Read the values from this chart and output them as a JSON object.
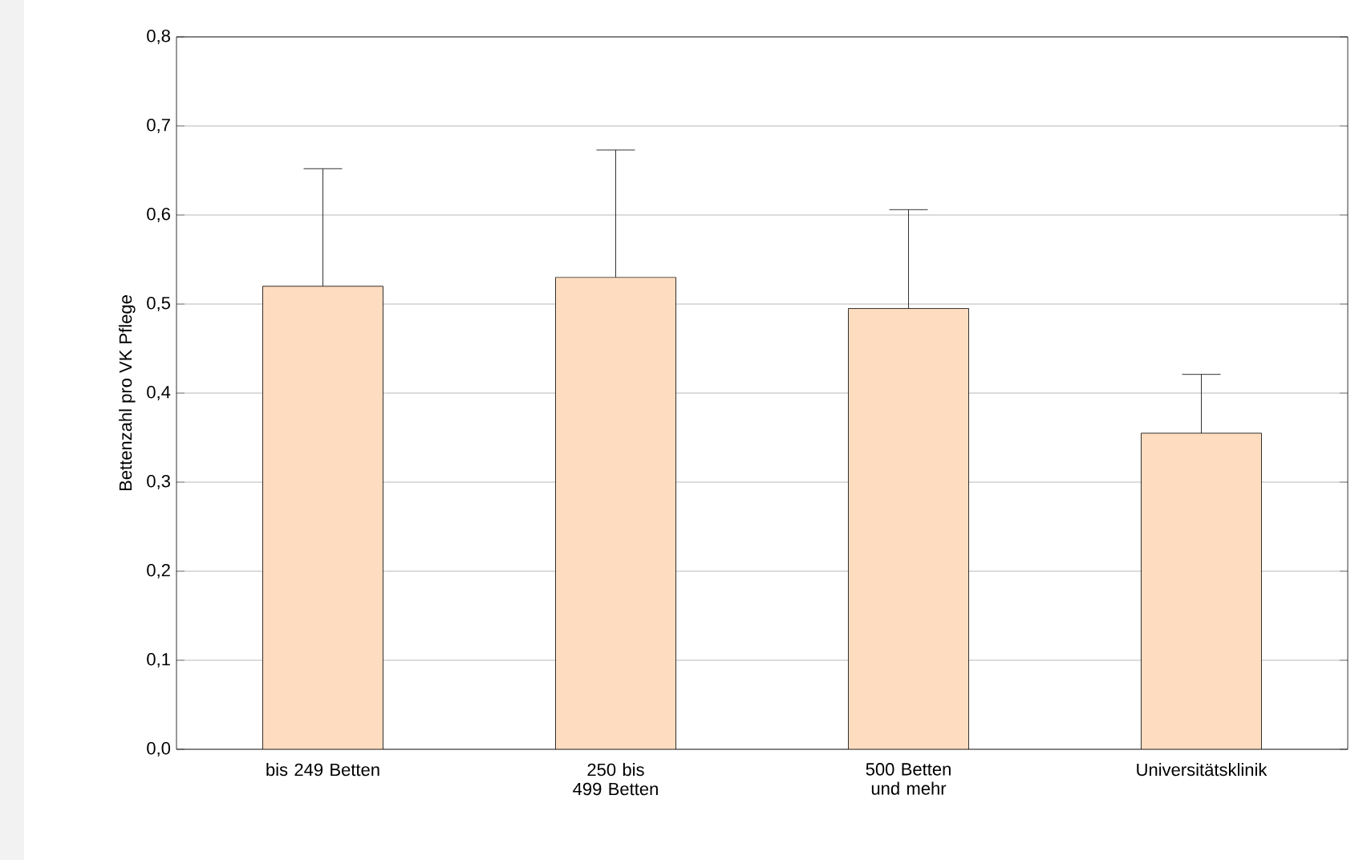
{
  "chart_data": {
    "type": "bar",
    "ylabel": "Bettenzahl pro VK Pflege",
    "categories": [
      "bis 249 Betten",
      "250 bis 499 Betten",
      "500 Betten und mehr",
      "Universitätsklinik"
    ],
    "values": [
      0.52,
      0.53,
      0.495,
      0.355
    ],
    "errors": [
      [
        0.52,
        0.652
      ],
      [
        0.53,
        0.673
      ],
      [
        0.495,
        0.606
      ],
      [
        0.355,
        0.421
      ]
    ],
    "color": "#fddcc0",
    "ylim": [
      0,
      0.8
    ],
    "yticks": [
      {
        "value": 0,
        "label": "0,0"
      },
      {
        "value": 0.1,
        "label": "0,1"
      },
      {
        "value": 0.2,
        "label": "0,2"
      },
      {
        "value": 0.3,
        "label": "0,3"
      },
      {
        "value": 0.4,
        "label": "0,4"
      },
      {
        "value": 0.5,
        "label": "0,5"
      },
      {
        "value": 0.6,
        "label": "0,6"
      },
      {
        "value": 0.7,
        "label": "0,7"
      },
      {
        "value": 0.8,
        "label": "0,8"
      }
    ],
    "grid": "y"
  }
}
